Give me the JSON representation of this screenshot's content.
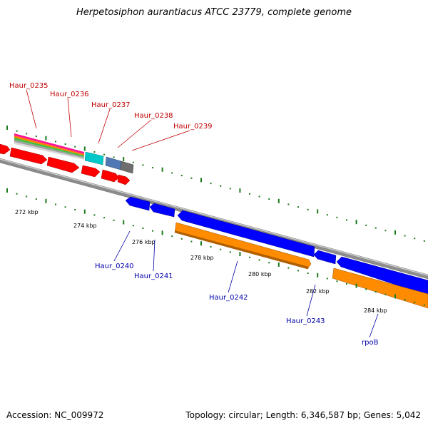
{
  "title": "Herpetosiphon aurantiacus ATCC 23779, complete genome",
  "accession": "Accession: NC_009972",
  "summary": "Topology: circular; Length: 6,346,587 bp; Genes: 5,042",
  "genes_top": [
    {
      "name": "Haur_0235"
    },
    {
      "name": "Haur_0236"
    },
    {
      "name": "Haur_0237"
    },
    {
      "name": "Haur_0238"
    },
    {
      "name": "Haur_0239"
    }
  ],
  "genes_bottom": [
    {
      "name": "Haur_0240"
    },
    {
      "name": "Haur_0241"
    },
    {
      "name": "Haur_0242"
    },
    {
      "name": "Haur_0243"
    },
    {
      "name": "rpoB"
    }
  ],
  "kbp_labels": [
    "272 kbp",
    "274 kbp",
    "276 kbp",
    "278 kbp",
    "280 kbp",
    "282 kbp",
    "284 kbp"
  ],
  "colors": {
    "forward_cds": "#ff0000",
    "reverse_cds": "#0000ff",
    "rrna_like": "#ff8c00",
    "cyan_feature": "#00c8c8",
    "steel_feature": "#5078b4",
    "gray_feature": "#6e6e6e",
    "tick": "#1a7a1a",
    "backbone": "#888888",
    "top_label": "#c00000",
    "bottom_label": "#0000aa"
  }
}
